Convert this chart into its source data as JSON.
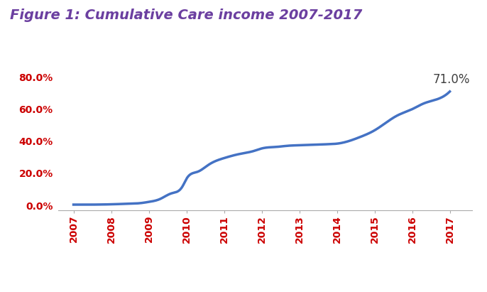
{
  "title": "Figure 1: Cumulative Care income 2007-2017",
  "title_color": "#6B3FA0",
  "title_fontsize": 14,
  "line_color": "#4472C4",
  "line_width": 2.5,
  "annotation_text": "71.0%",
  "annotation_color": "#404040",
  "annotation_fontsize": 12,
  "ytick_labels": [
    "0.0%",
    "20.0%",
    "40.0%",
    "60.0%",
    "80.0%"
  ],
  "ytick_values": [
    0.0,
    0.2,
    0.4,
    0.6,
    0.8
  ],
  "ytick_color": "#CC0000",
  "xtick_color": "#CC0000",
  "ylim": [
    -0.03,
    0.88
  ],
  "xlim": [
    2006.6,
    2017.6
  ],
  "background_color": "#FFFFFF",
  "spine_color": "#AAAAAA",
  "x_knots": [
    2007,
    2007.4,
    2008,
    2008.4,
    2008.8,
    2009,
    2009.3,
    2009.6,
    2009.9,
    2010,
    2010.3,
    2010.6,
    2011,
    2011.4,
    2011.8,
    2012,
    2012.4,
    2012.7,
    2013,
    2013.4,
    2013.8,
    2014,
    2014.3,
    2014.6,
    2015,
    2015.3,
    2015.6,
    2016,
    2016.3,
    2016.7,
    2017
  ],
  "y_knots": [
    0.005,
    0.005,
    0.007,
    0.01,
    0.015,
    0.022,
    0.04,
    0.075,
    0.12,
    0.165,
    0.21,
    0.255,
    0.295,
    0.32,
    0.34,
    0.355,
    0.365,
    0.372,
    0.375,
    0.378,
    0.382,
    0.385,
    0.4,
    0.425,
    0.468,
    0.515,
    0.56,
    0.6,
    0.635,
    0.665,
    0.71
  ]
}
